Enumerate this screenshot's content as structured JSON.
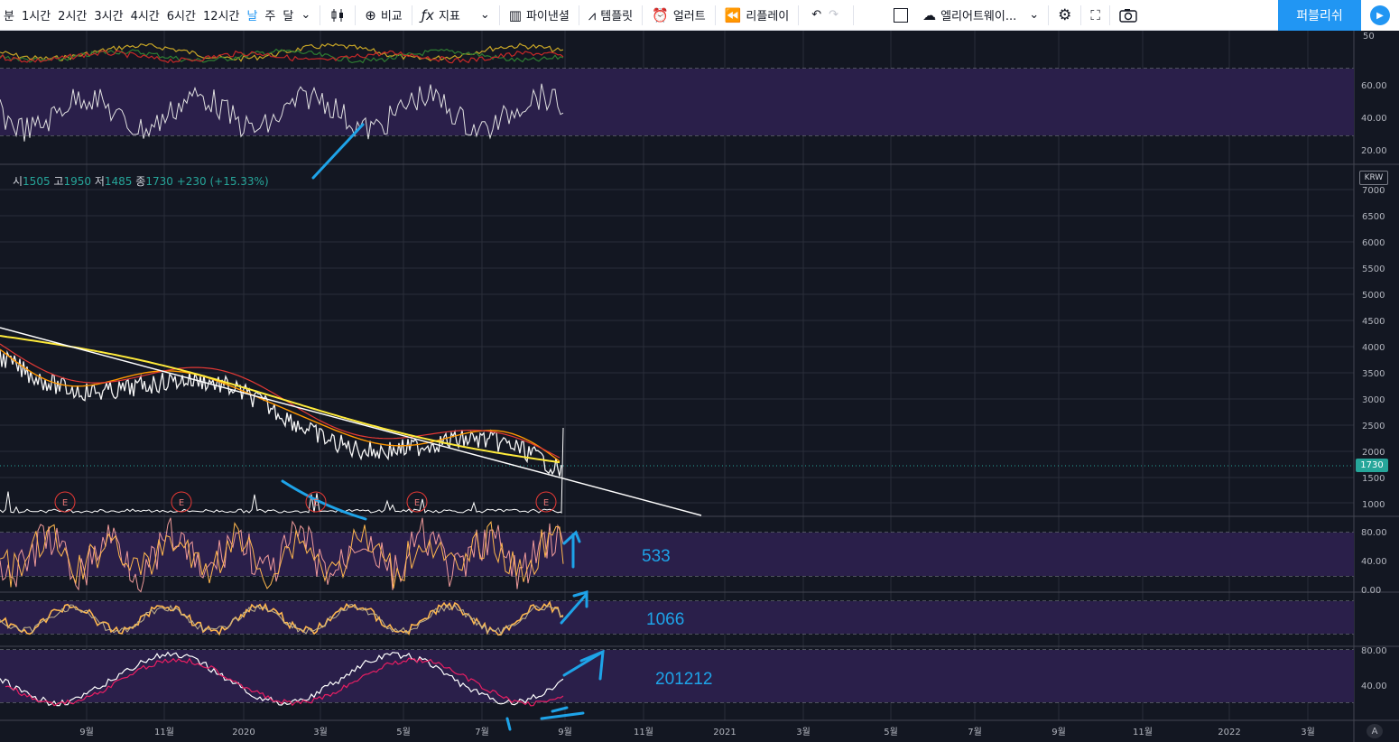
{
  "toolbar": {
    "intervals": [
      "분",
      "1시간",
      "2시간",
      "3시간",
      "4시간",
      "6시간",
      "12시간",
      "날",
      "주",
      "달"
    ],
    "active_interval": "날",
    "compare_label": "비교",
    "indicators_label": "지표",
    "financials_label": "파이낸셜",
    "templates_label": "템플릿",
    "alert_label": "얼러트",
    "replay_label": "리플레이",
    "layout_name": "엘리어트웨이...",
    "publish_label": "퍼블리쉬"
  },
  "ohlc": {
    "open_label": "시",
    "open": "1505",
    "high_label": "고",
    "high": "1950",
    "low_label": "저",
    "low": "1485",
    "close_label": "종",
    "close": "1730",
    "change": "+230 (+15.33%)"
  },
  "price_axis": {
    "currency": "KRW",
    "labels": [
      "7000",
      "6500",
      "6000",
      "5500",
      "5000",
      "4500",
      "4000",
      "3500",
      "3000",
      "2500",
      "2000",
      "1500",
      "1000"
    ],
    "last_price": "1730",
    "last_price_color": "#26a69a"
  },
  "panes": {
    "top_axis": "50",
    "rsi_axis": [
      "60.00",
      "40.00",
      "20.00"
    ],
    "stoch1_axis": [
      "80.00",
      "40.00",
      "0.00"
    ],
    "stoch3_axis": [
      "80.00",
      "40.00"
    ]
  },
  "time_axis": [
    "9월",
    "11월",
    "2020",
    "3월",
    "5월",
    "7월",
    "9월",
    "11월",
    "2021",
    "3월",
    "5월",
    "7월",
    "9월",
    "11월",
    "2022",
    "3월"
  ],
  "earnings_marker": "E",
  "annotations": [
    "533",
    "1066",
    "201212"
  ],
  "colors": {
    "background": "#131722",
    "band": "#2a1f4a",
    "accent": "#2196f3",
    "annotation": "#1ea3e8",
    "up": "#26a69a"
  },
  "auto_scale_label": "A"
}
